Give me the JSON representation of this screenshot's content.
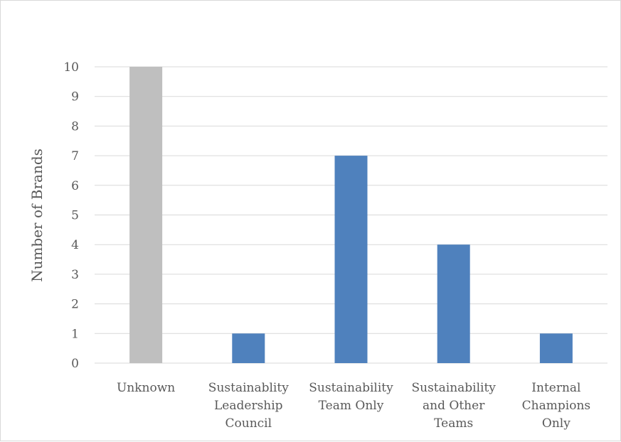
{
  "chart_data": {
    "type": "bar",
    "title": "",
    "xlabel": "",
    "ylabel": "Number of Brands",
    "ylim": [
      0,
      10
    ],
    "ytick_values": [
      0,
      1,
      2,
      3,
      4,
      5,
      6,
      7,
      8,
      9,
      10
    ],
    "grid": true,
    "legend": "none",
    "categories": [
      [
        "Unknown"
      ],
      [
        "Sustainablity",
        "Leadership",
        "Council"
      ],
      [
        "Sustainability",
        "Team Only"
      ],
      [
        "Sustainability",
        "and Other",
        "Teams"
      ],
      [
        "Internal",
        "Champions",
        "Only"
      ]
    ],
    "values": [
      10,
      1,
      7,
      4,
      1
    ],
    "bar_colors": [
      "#bfbfbf",
      "#4f81bd",
      "#4f81bd",
      "#4f81bd",
      "#4f81bd"
    ]
  }
}
